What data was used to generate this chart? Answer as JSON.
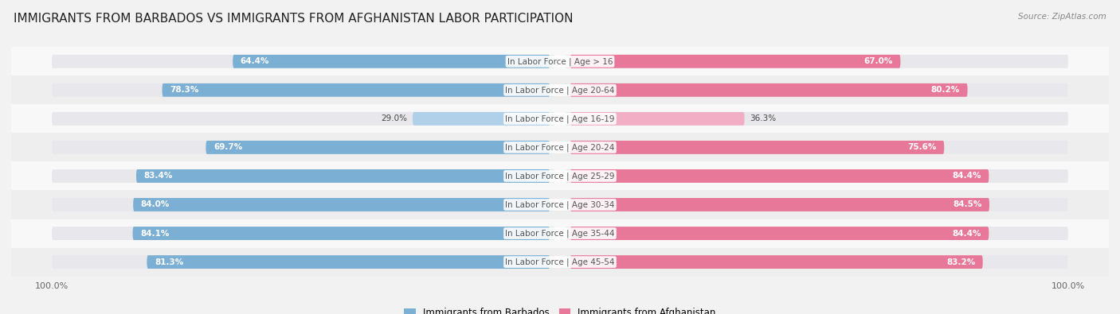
{
  "title": "IMMIGRANTS FROM BARBADOS VS IMMIGRANTS FROM AFGHANISTAN LABOR PARTICIPATION",
  "source": "Source: ZipAtlas.com",
  "categories": [
    "In Labor Force | Age > 16",
    "In Labor Force | Age 20-64",
    "In Labor Force | Age 16-19",
    "In Labor Force | Age 20-24",
    "In Labor Force | Age 25-29",
    "In Labor Force | Age 30-34",
    "In Labor Force | Age 35-44",
    "In Labor Force | Age 45-54"
  ],
  "barbados_values": [
    64.4,
    78.3,
    29.0,
    69.7,
    83.4,
    84.0,
    84.1,
    81.3
  ],
  "afghanistan_values": [
    67.0,
    80.2,
    36.3,
    75.6,
    84.4,
    84.5,
    84.4,
    83.2
  ],
  "barbados_color": "#7bafd4",
  "barbados_color_light": "#b0cfe8",
  "afghanistan_color": "#e8789a",
  "afghanistan_color_light": "#f2aec4",
  "track_color": "#e8e8ec",
  "bar_height": 0.55,
  "max_value": 100.0,
  "background_color": "#f2f2f2",
  "row_bg_light": "#f8f8f8",
  "row_bg_dark": "#eeeeee",
  "title_fontsize": 11,
  "label_fontsize": 7.5,
  "value_fontsize": 7.5,
  "legend_fontsize": 8.5
}
